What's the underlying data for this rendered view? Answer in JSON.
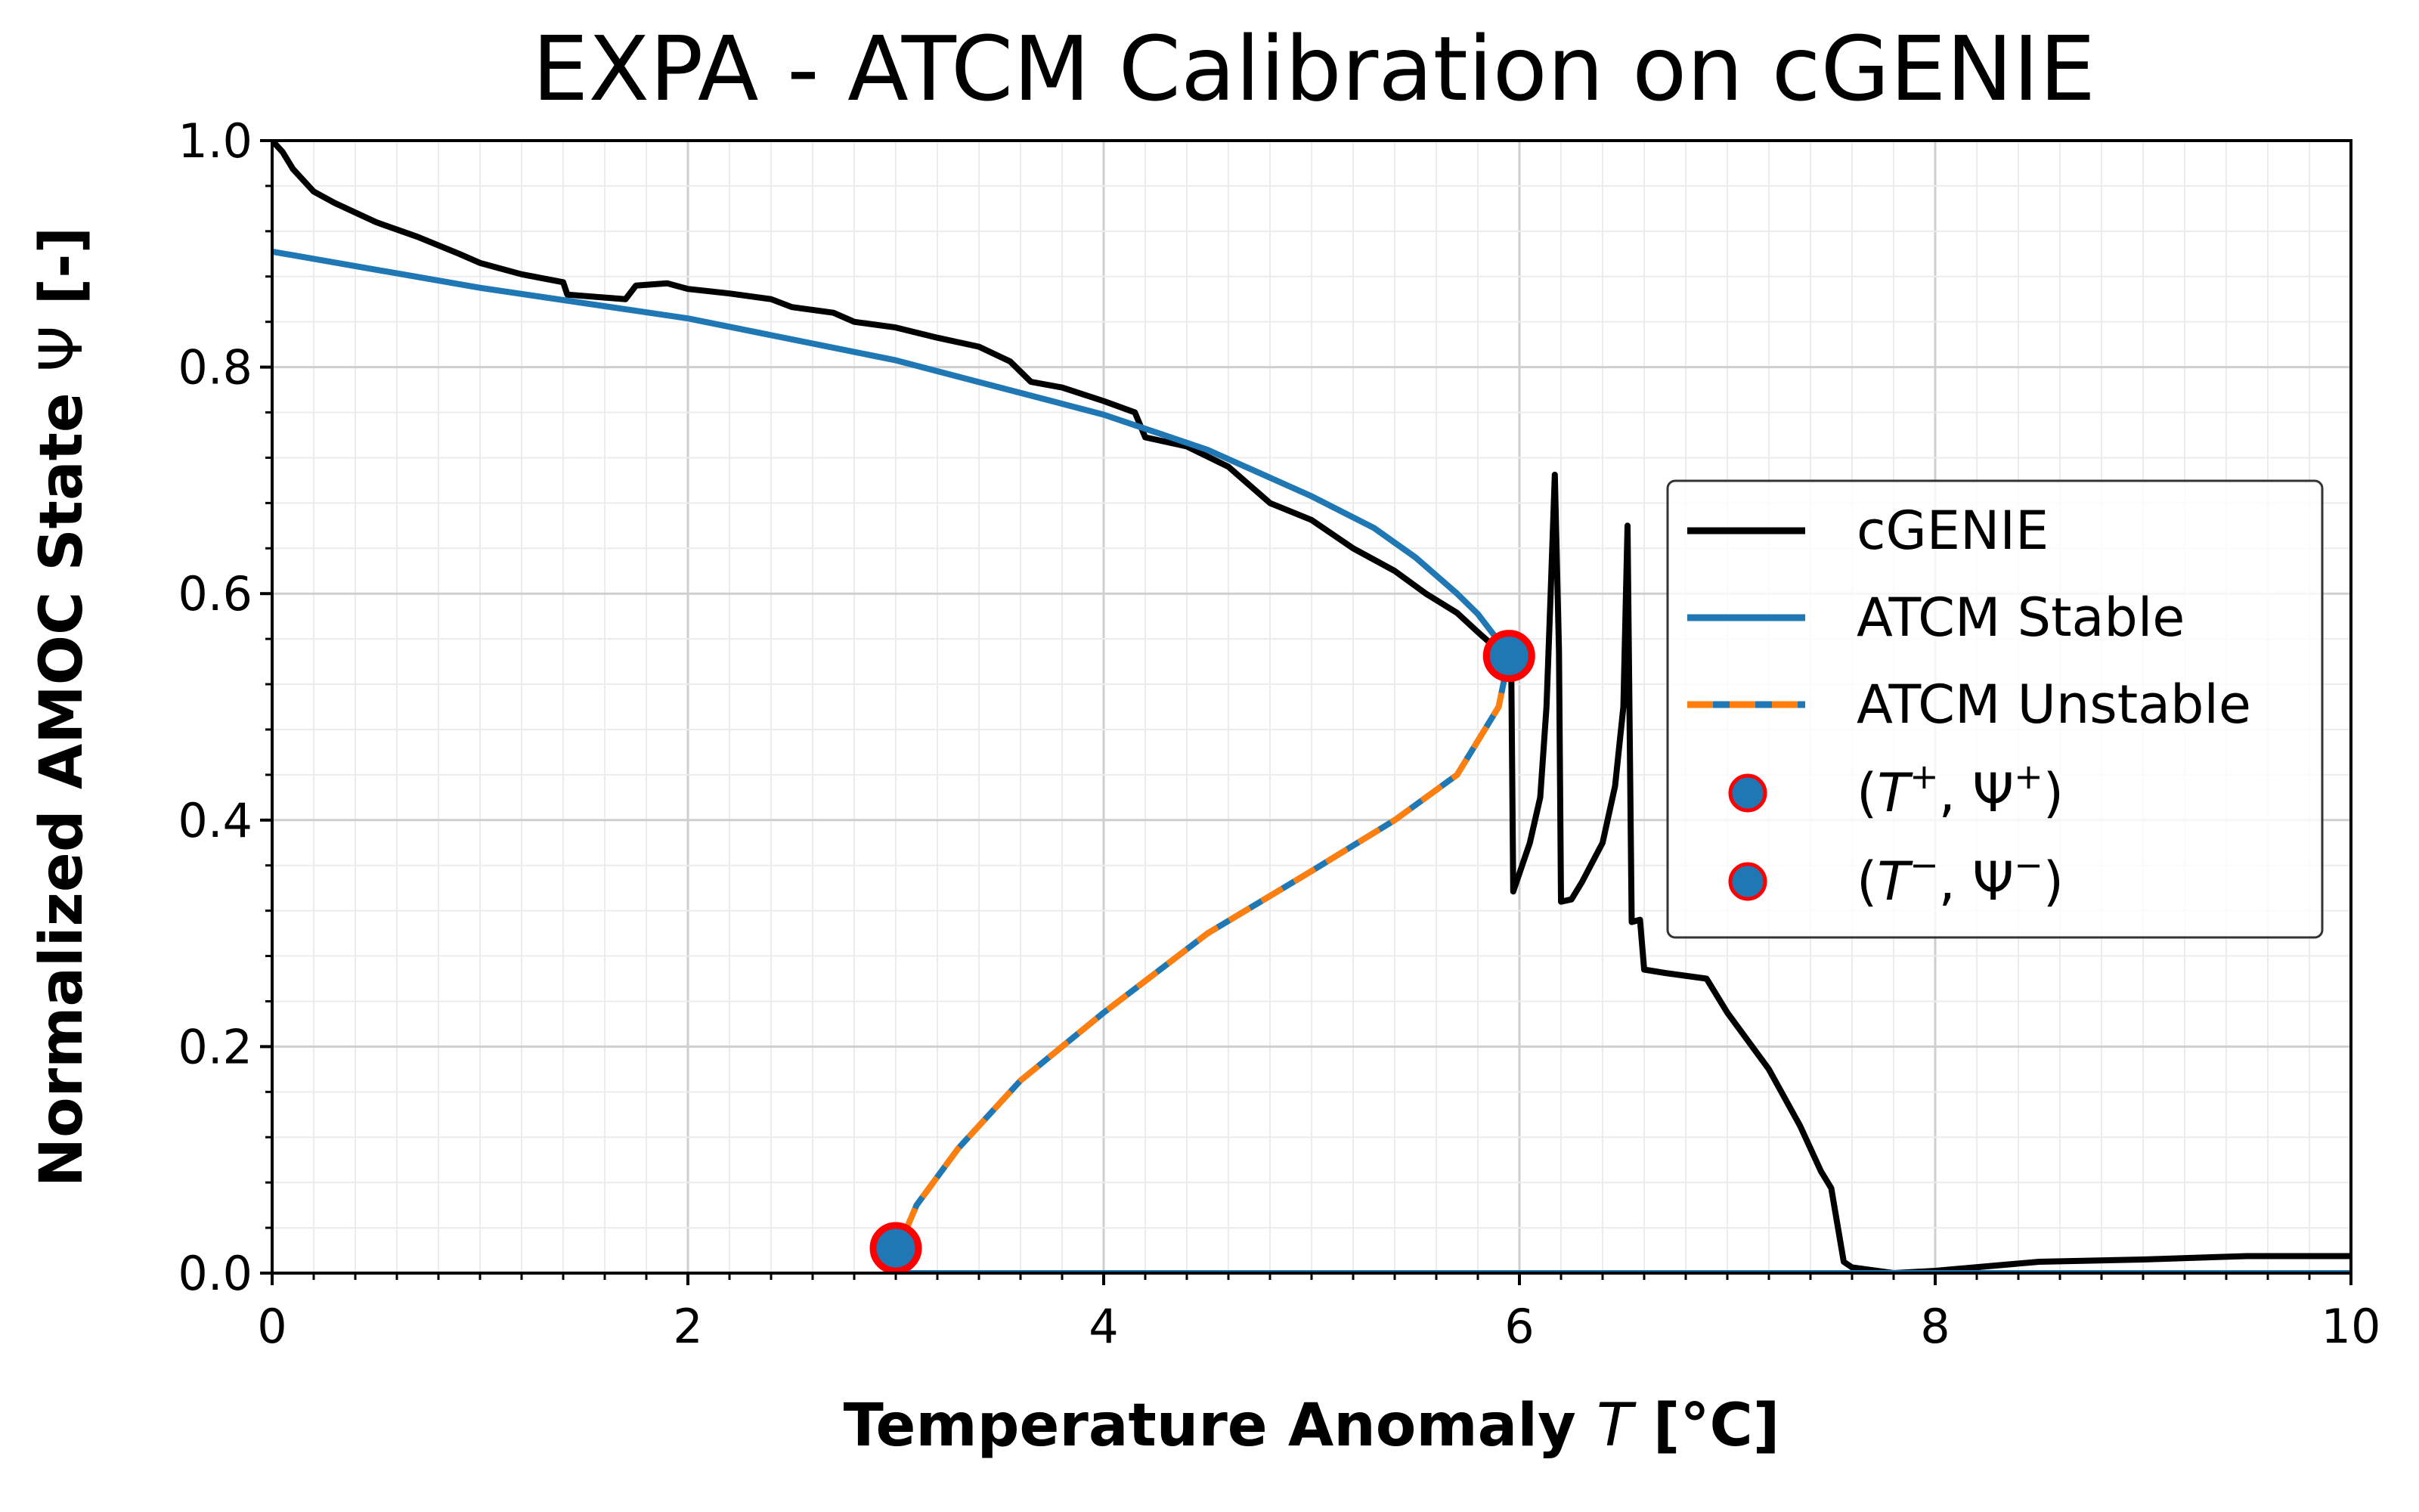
{
  "chart_data": {
    "type": "line",
    "title": "EXPA - ATCM Calibration on cGENIE",
    "xlabel": "Temperature Anomaly",
    "xlabel_symbol": "T",
    "xlabel_unit": "[°C]",
    "ylabel": "Normalized AMOC State",
    "ylabel_symbol": "Ψ",
    "ylabel_unit": "[-]",
    "xlim": [
      0,
      10
    ],
    "ylim": [
      0,
      1
    ],
    "xticks": [
      "0",
      "2",
      "4",
      "6",
      "8",
      "10"
    ],
    "yticks": [
      "0.0",
      "0.2",
      "0.4",
      "0.6",
      "0.8",
      "1.0"
    ],
    "x_tick_values": [
      0,
      2,
      4,
      6,
      8,
      10
    ],
    "y_tick_values": [
      0,
      0.2,
      0.4,
      0.6,
      0.8,
      1.0
    ],
    "grid": "major and minor",
    "legend_position": "right",
    "series": [
      {
        "name": "cGENIE",
        "color": "#000000",
        "style": "solid",
        "points": [
          [
            0,
            1.0
          ],
          [
            0.05,
            0.99
          ],
          [
            0.1,
            0.975
          ],
          [
            0.2,
            0.955
          ],
          [
            0.3,
            0.945
          ],
          [
            0.5,
            0.928
          ],
          [
            0.7,
            0.915
          ],
          [
            0.9,
            0.9
          ],
          [
            1.0,
            0.892
          ],
          [
            1.2,
            0.882
          ],
          [
            1.4,
            0.875
          ],
          [
            1.42,
            0.864
          ],
          [
            1.7,
            0.86
          ],
          [
            1.75,
            0.872
          ],
          [
            1.9,
            0.874
          ],
          [
            2.0,
            0.869
          ],
          [
            2.2,
            0.865
          ],
          [
            2.4,
            0.86
          ],
          [
            2.5,
            0.853
          ],
          [
            2.7,
            0.848
          ],
          [
            2.8,
            0.84
          ],
          [
            3.0,
            0.835
          ],
          [
            3.2,
            0.826
          ],
          [
            3.4,
            0.818
          ],
          [
            3.55,
            0.805
          ],
          [
            3.65,
            0.787
          ],
          [
            3.8,
            0.782
          ],
          [
            4.0,
            0.77
          ],
          [
            4.15,
            0.76
          ],
          [
            4.2,
            0.738
          ],
          [
            4.4,
            0.73
          ],
          [
            4.6,
            0.712
          ],
          [
            4.8,
            0.68
          ],
          [
            5.0,
            0.665
          ],
          [
            5.2,
            0.64
          ],
          [
            5.4,
            0.62
          ],
          [
            5.55,
            0.6
          ],
          [
            5.7,
            0.583
          ],
          [
            5.8,
            0.566
          ],
          [
            5.88,
            0.553
          ],
          [
            5.93,
            0.55
          ],
          [
            5.96,
            0.548
          ],
          [
            5.97,
            0.337
          ],
          [
            6.05,
            0.38
          ],
          [
            6.1,
            0.42
          ],
          [
            6.13,
            0.5
          ],
          [
            6.15,
            0.6
          ],
          [
            6.17,
            0.705
          ],
          [
            6.19,
            0.55
          ],
          [
            6.2,
            0.328
          ],
          [
            6.25,
            0.33
          ],
          [
            6.3,
            0.345
          ],
          [
            6.4,
            0.38
          ],
          [
            6.46,
            0.43
          ],
          [
            6.5,
            0.5
          ],
          [
            6.52,
            0.66
          ],
          [
            6.54,
            0.31
          ],
          [
            6.58,
            0.312
          ],
          [
            6.6,
            0.268
          ],
          [
            6.7,
            0.265
          ],
          [
            6.9,
            0.26
          ],
          [
            7.0,
            0.23
          ],
          [
            7.2,
            0.18
          ],
          [
            7.35,
            0.13
          ],
          [
            7.45,
            0.09
          ],
          [
            7.5,
            0.075
          ],
          [
            7.56,
            0.01
          ],
          [
            7.6,
            0.005
          ],
          [
            7.8,
            0.0
          ],
          [
            8.0,
            0.002
          ],
          [
            8.5,
            0.01
          ],
          [
            9.0,
            0.012
          ],
          [
            9.5,
            0.015
          ],
          [
            10.0,
            0.015
          ]
        ]
      },
      {
        "name": "ATCM Stable",
        "color": "#1f77b4",
        "style": "solid",
        "segments": [
          [
            [
              0,
              0.902
            ],
            [
              1,
              0.87
            ],
            [
              2,
              0.843
            ],
            [
              3,
              0.806
            ],
            [
              4,
              0.758
            ],
            [
              4.5,
              0.727
            ],
            [
              5,
              0.686
            ],
            [
              5.3,
              0.658
            ],
            [
              5.5,
              0.632
            ],
            [
              5.7,
              0.6
            ],
            [
              5.8,
              0.582
            ],
            [
              5.9,
              0.558
            ],
            [
              5.95,
              0.545
            ]
          ],
          [
            [
              3.0,
              0.0
            ],
            [
              10.0,
              0.0
            ]
          ]
        ]
      },
      {
        "name": "ATCM Unstable",
        "color": "#1f77b4",
        "dash_color": "#ff7f0e",
        "style": "dashed",
        "points": [
          [
            5.95,
            0.545
          ],
          [
            5.9,
            0.5
          ],
          [
            5.7,
            0.44
          ],
          [
            5.4,
            0.4
          ],
          [
            5,
            0.355
          ],
          [
            4.5,
            0.3
          ],
          [
            4.0,
            0.23
          ],
          [
            3.6,
            0.17
          ],
          [
            3.3,
            0.11
          ],
          [
            3.1,
            0.06
          ],
          [
            3.03,
            0.03
          ],
          [
            3.0,
            0.0
          ]
        ]
      },
      {
        "name": "(T⁺, Ψ⁺)",
        "type": "scatter",
        "color": "#1f77b4",
        "edge_color": "#ff0000",
        "points": [
          [
            5.95,
            0.545
          ]
        ]
      },
      {
        "name": "(T⁻, Ψ⁻)",
        "type": "scatter",
        "color": "#1f77b4",
        "edge_color": "#ff0000",
        "points": [
          [
            3.0,
            0.022
          ]
        ]
      }
    ]
  },
  "legend": {
    "items": [
      {
        "label": "cGENIE"
      },
      {
        "label": "ATCM Stable"
      },
      {
        "label": "ATCM Unstable"
      },
      {
        "label_parts": [
          "(",
          "T",
          "+",
          ", Ψ",
          "+",
          ")"
        ]
      },
      {
        "label_parts": [
          "(",
          "T",
          "−",
          ", Ψ",
          "−",
          ")"
        ]
      }
    ]
  }
}
